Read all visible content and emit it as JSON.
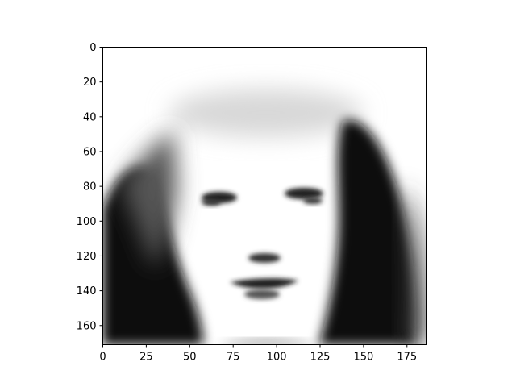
{
  "figure": {
    "image_description_icon": "grayscale-face-image-icon",
    "x_ticks": [
      "0",
      "25",
      "50",
      "75",
      "100",
      "125",
      "150",
      "175"
    ],
    "y_ticks": [
      "0",
      "20",
      "40",
      "60",
      "80",
      "100",
      "120",
      "140",
      "160"
    ],
    "x_range": [
      0,
      186
    ],
    "y_range": [
      0,
      171
    ],
    "colormap": "gray_r",
    "colors": {
      "axis": "#000000",
      "background": "#ffffff",
      "ink": "#000000"
    }
  }
}
